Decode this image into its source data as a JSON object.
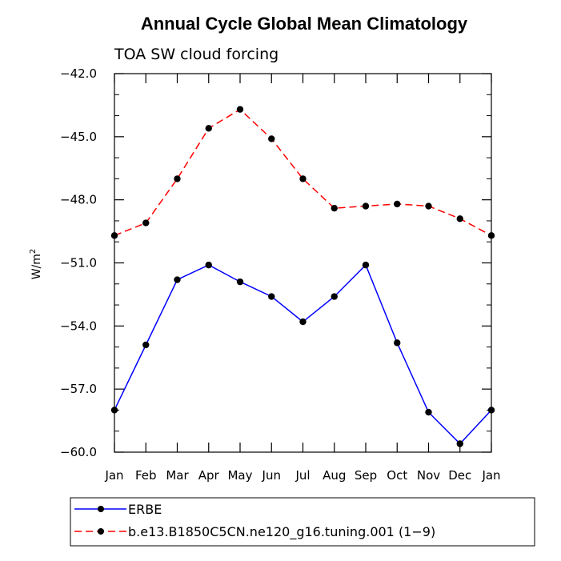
{
  "chart_data": {
    "type": "line",
    "title": "Annual Cycle Global Mean Climatology",
    "subtitle": "TOA SW cloud forcing",
    "xlabel": "",
    "ylabel": "W/m",
    "ylabel_superscript": "2",
    "categories": [
      "Jan",
      "Feb",
      "Mar",
      "Apr",
      "May",
      "Jun",
      "Jul",
      "Aug",
      "Sep",
      "Oct",
      "Nov",
      "Dec",
      "Jan"
    ],
    "ylim": [
      -60.0,
      -42.0
    ],
    "yticks": [
      "-42.0",
      "-45.0",
      "-48.0",
      "-51.0",
      "-54.0",
      "-57.0",
      "-60.0"
    ],
    "series": [
      {
        "name": "ERBE",
        "color": "#0000ff",
        "dash": "solid",
        "values": [
          -58.0,
          -54.9,
          -51.8,
          -51.1,
          -51.9,
          -52.6,
          -53.8,
          -52.6,
          -51.1,
          -54.8,
          -58.1,
          -59.6,
          -58.0
        ]
      },
      {
        "name": "b.e13.B1850C5CN.ne120_g16.tuning.001 (1−9)",
        "color": "#ff0000",
        "dash": "dashed",
        "values": [
          -49.7,
          -49.1,
          -47.0,
          -44.6,
          -43.7,
          -45.1,
          -47.0,
          -48.4,
          -48.3,
          -48.2,
          -48.3,
          -48.9,
          -49.7
        ]
      }
    ],
    "legend_position": "bottom-left"
  }
}
